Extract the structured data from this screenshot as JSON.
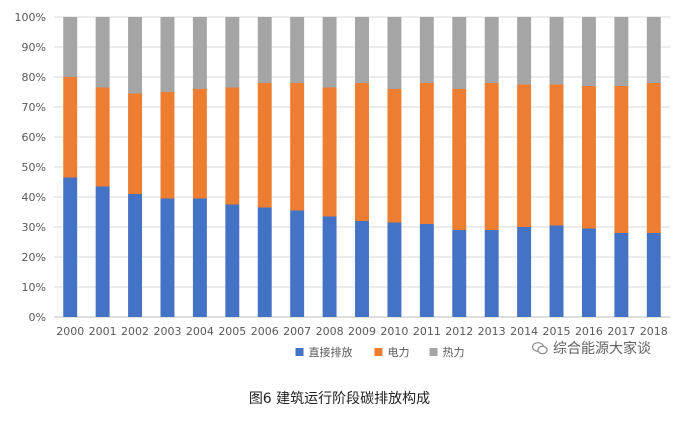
{
  "chart_data": {
    "type": "bar",
    "stacked": true,
    "categories": [
      "2000",
      "2001",
      "2002",
      "2003",
      "2004",
      "2005",
      "2006",
      "2007",
      "2008",
      "2009",
      "2010",
      "2011",
      "2012",
      "2013",
      "2014",
      "2015",
      "2016",
      "2017",
      "2018"
    ],
    "series": [
      {
        "name": "直接排放",
        "color": "#4472C4",
        "values": [
          46.5,
          43.5,
          41,
          39.5,
          39.5,
          37.5,
          36.5,
          35.5,
          33.5,
          32,
          31.5,
          31,
          29,
          29,
          30,
          30.5,
          29.5,
          28,
          28
        ]
      },
      {
        "name": "电力",
        "color": "#ED7D31",
        "values": [
          33.5,
          33,
          33.5,
          35.5,
          36.5,
          39,
          41.5,
          42.5,
          43,
          46,
          44.5,
          47,
          47,
          49,
          47.5,
          47,
          47.5,
          49,
          50
        ]
      },
      {
        "name": "热力",
        "color": "#A5A5A5",
        "values": [
          20,
          23.5,
          25.5,
          25,
          24,
          23.5,
          22,
          22,
          23.5,
          22,
          24,
          22,
          24,
          22,
          22.5,
          22.5,
          23,
          23,
          22
        ]
      }
    ],
    "yticks": [
      "0%",
      "10%",
      "20%",
      "30%",
      "40%",
      "50%",
      "60%",
      "70%",
      "80%",
      "90%",
      "100%"
    ],
    "ylim": [
      0,
      100
    ],
    "grid": true,
    "legend": "bottom"
  },
  "caption": "图6  建筑运行阶段碳排放构成",
  "watermark": "综合能源大家谈"
}
